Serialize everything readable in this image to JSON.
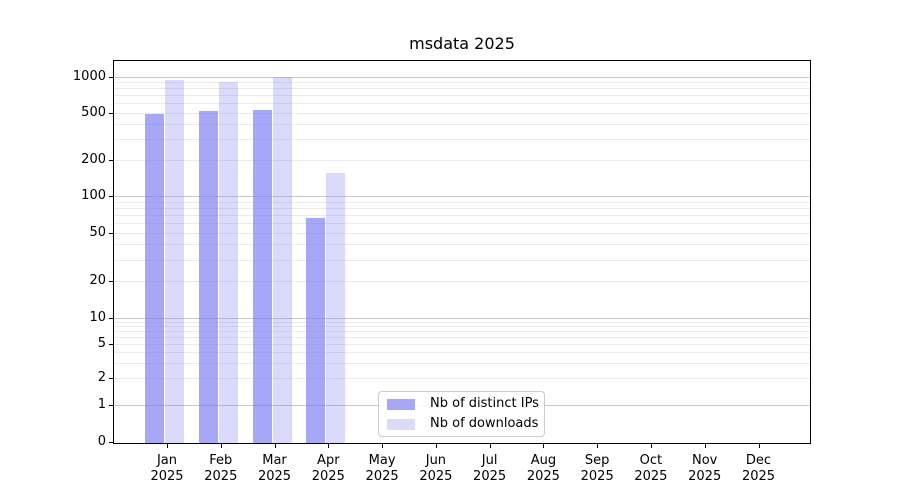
{
  "chart_data": {
    "type": "bar",
    "title": "msdata 2025",
    "categories": [
      "Jan",
      "Feb",
      "Mar",
      "Apr",
      "May",
      "Jun",
      "Jul",
      "Aug",
      "Sep",
      "Oct",
      "Nov",
      "Dec"
    ],
    "category_year_label": "2025",
    "series": [
      {
        "name": "Nb of distinct IPs",
        "color": "rgba(120,120,245,0.65)",
        "values": [
          490,
          510,
          525,
          66,
          0,
          0,
          0,
          0,
          0,
          0,
          0,
          0
        ]
      },
      {
        "name": "Nb of downloads",
        "color": "rgba(120,120,245,0.27)",
        "values": [
          930,
          900,
          990,
          157,
          0,
          0,
          0,
          0,
          0,
          0,
          0,
          0
        ]
      }
    ],
    "yticks": [
      0,
      1,
      2,
      5,
      10,
      20,
      50,
      100,
      200,
      500,
      1000
    ],
    "yaxis_scale": "symlog",
    "ylim": [
      0,
      1200
    ],
    "grid": {
      "orientation": "horizontal",
      "major_color": "#c8c8c8",
      "minor_color": "#ebebeb"
    },
    "legend_position": "lower center",
    "axis_color": "#000000",
    "text_color": "#000000"
  }
}
